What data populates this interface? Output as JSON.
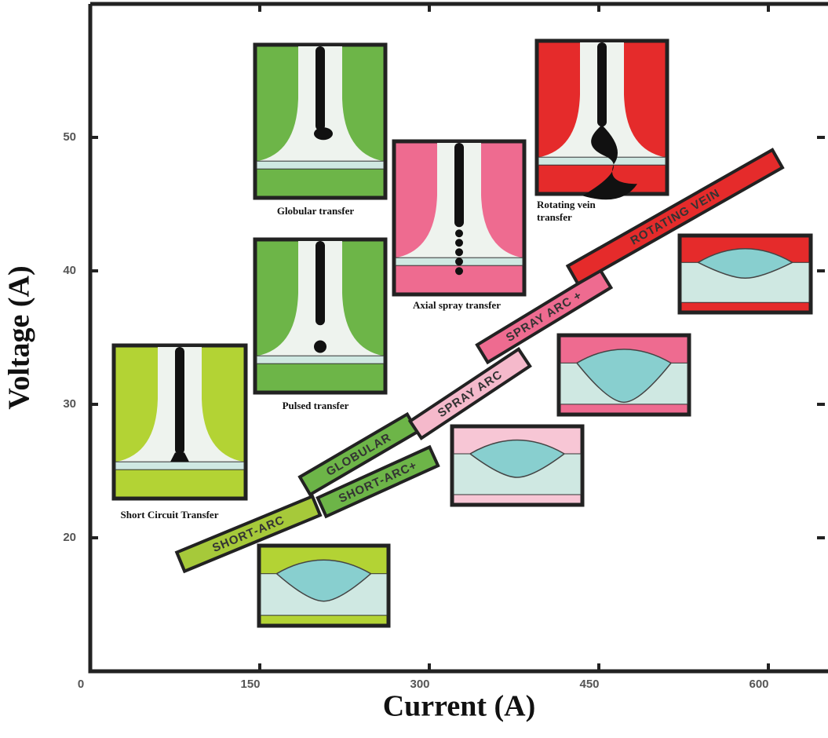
{
  "chart_data": {
    "type": "band",
    "xlabel": "Current (A)",
    "ylabel": "Voltage (A)",
    "xlim": [
      0,
      650
    ],
    "xticks": [
      0,
      150,
      300,
      450,
      600
    ],
    "ylim": [
      10,
      60
    ],
    "yticks": [
      20,
      30,
      40,
      50
    ],
    "bands": [
      {
        "name": "SHORT-ARC",
        "color": "#a6c93a",
        "x": [
          80,
          200
        ],
        "y": [
          18.2,
          22.4
        ]
      },
      {
        "name": "SHORT-ARC+",
        "color": "#6db548",
        "x": [
          205,
          304
        ],
        "y": [
          22.3,
          26.1
        ]
      },
      {
        "name": "GLOBULAR",
        "color": "#6db548",
        "x": [
          190,
          285
        ],
        "y": [
          23.9,
          28.6
        ]
      },
      {
        "name": "SPRAY ARC",
        "color": "#f5b9cb",
        "x": [
          288,
          384
        ],
        "y": [
          28.1,
          33.5
        ]
      },
      {
        "name": "SPRAY ARC +",
        "color": "#ee6b90",
        "x": [
          347,
          456
        ],
        "y": [
          33.8,
          39.4
        ]
      },
      {
        "name": "ROTATING VEIN",
        "color": "#e52b2b",
        "x": [
          427,
          608
        ],
        "y": [
          39.7,
          48.4
        ]
      }
    ],
    "annotations": [
      "Short Circuit Transfer",
      "Globular transfer",
      "Pulsed transfer",
      "Axial spray transfer",
      "Rotating vein transfer"
    ]
  }
}
